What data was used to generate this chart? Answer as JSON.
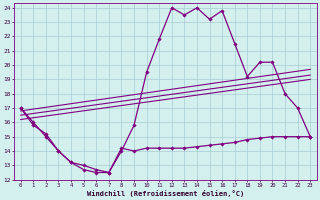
{
  "xlabel": "Windchill (Refroidissement éolien,°C)",
  "bg_color": "#d4f0ee",
  "grid_color": "#a8cdd4",
  "line_color": "#800080",
  "xlim": [
    -0.5,
    23.5
  ],
  "ylim": [
    12,
    24.3
  ],
  "xticks": [
    0,
    1,
    2,
    3,
    4,
    5,
    6,
    7,
    8,
    9,
    10,
    11,
    12,
    13,
    14,
    15,
    16,
    17,
    18,
    19,
    20,
    21,
    22,
    23
  ],
  "yticks": [
    12,
    13,
    14,
    15,
    16,
    17,
    18,
    19,
    20,
    21,
    22,
    23,
    24
  ],
  "series": [
    {
      "x": [
        0,
        1,
        2,
        3,
        4,
        5,
        6,
        7,
        8,
        9,
        10,
        11,
        12,
        13,
        14,
        15,
        16,
        17,
        18,
        19,
        20,
        21,
        22,
        23
      ],
      "y": [
        17,
        16,
        15,
        14,
        13.2,
        12.7,
        12.5,
        12.5,
        14,
        15.8,
        19.5,
        21.8,
        24.0,
        23.5,
        24.0,
        23.2,
        23.8,
        21.5,
        19.2,
        20.2,
        20.2,
        18.0,
        17.0,
        15.0
      ],
      "marker": "D",
      "markersize": 1.8,
      "linewidth": 0.9
    },
    {
      "x": [
        0,
        1,
        2,
        3,
        4,
        5,
        6,
        7,
        8,
        9,
        10,
        11,
        12,
        13,
        14,
        15,
        16,
        17,
        18,
        19,
        20,
        21,
        22,
        23
      ],
      "y": [
        17,
        15.8,
        15.2,
        14.0,
        13.2,
        13.0,
        12.7,
        12.5,
        14.2,
        14.0,
        14.2,
        14.2,
        14.2,
        14.2,
        14.3,
        14.4,
        14.5,
        14.6,
        14.8,
        14.9,
        15.0,
        15.0,
        15.0,
        15.0
      ],
      "marker": "D",
      "markersize": 1.8,
      "linewidth": 0.9
    },
    {
      "x": [
        0,
        23
      ],
      "y": [
        16.8,
        19.7
      ],
      "marker": null,
      "markersize": 0,
      "linewidth": 0.8
    },
    {
      "x": [
        0,
        23
      ],
      "y": [
        16.5,
        19.3
      ],
      "marker": null,
      "markersize": 0,
      "linewidth": 0.8
    },
    {
      "x": [
        0,
        23
      ],
      "y": [
        16.2,
        19.0
      ],
      "marker": null,
      "markersize": 0,
      "linewidth": 0.8
    }
  ]
}
